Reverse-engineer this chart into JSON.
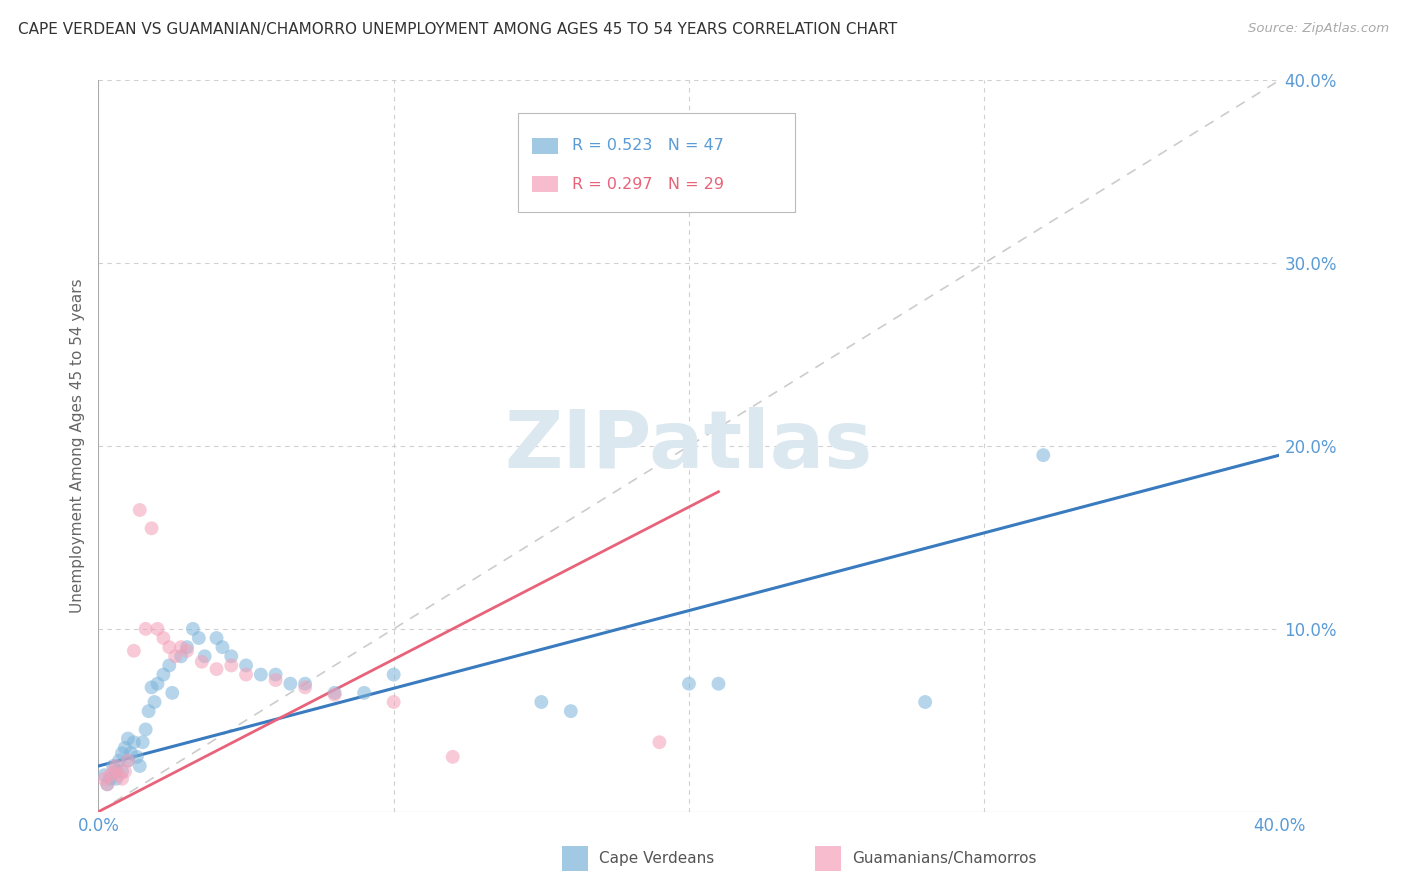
{
  "title": "CAPE VERDEAN VS GUAMANIAN/CHAMORRO UNEMPLOYMENT AMONG AGES 45 TO 54 YEARS CORRELATION CHART",
  "source": "Source: ZipAtlas.com",
  "ylabel": "Unemployment Among Ages 45 to 54 years",
  "xlim": [
    0.0,
    0.4
  ],
  "ylim": [
    0.0,
    0.4
  ],
  "xticks": [
    0.0,
    0.1,
    0.2,
    0.3,
    0.4
  ],
  "yticks": [
    0.1,
    0.2,
    0.3,
    0.4
  ],
  "xticklabels": [
    "0.0%",
    "",
    "",
    "",
    "40.0%"
  ],
  "yticklabels": [
    "10.0%",
    "20.0%",
    "30.0%",
    "40.0%"
  ],
  "blue_color": "#7ab3d9",
  "pink_color": "#f4a0b8",
  "blue_line_color": "#3a7bbf",
  "pink_line_color": "#e8637a",
  "ref_line_color": "#cccccc",
  "axis_label_color": "#5b9bd5",
  "grid_color": "#d0d0d0",
  "background_color": "#ffffff",
  "watermark": "ZIPatlas",
  "watermark_color": "#dce8f0",
  "legend_R_blue": "R = 0.523",
  "legend_N_blue": "N = 47",
  "legend_R_pink": "R = 0.297",
  "legend_N_pink": "N = 29",
  "legend_label_blue": "Cape Verdeans",
  "legend_label_pink": "Guamanians/Chamorros",
  "blue_line_x0": 0.0,
  "blue_line_y0": 0.025,
  "blue_line_x1": 0.4,
  "blue_line_y1": 0.195,
  "pink_line_x0": 0.0,
  "pink_line_y0": 0.0,
  "pink_line_x1": 0.21,
  "pink_line_y1": 0.175,
  "ref_line_x0": 0.0,
  "ref_line_y0": 0.0,
  "ref_line_x1": 0.4,
  "ref_line_y1": 0.4,
  "blue_points_x": [
    0.002,
    0.003,
    0.004,
    0.005,
    0.006,
    0.006,
    0.007,
    0.008,
    0.008,
    0.009,
    0.01,
    0.01,
    0.011,
    0.012,
    0.013,
    0.014,
    0.015,
    0.016,
    0.017,
    0.018,
    0.019,
    0.02,
    0.022,
    0.024,
    0.025,
    0.028,
    0.03,
    0.032,
    0.034,
    0.036,
    0.04,
    0.042,
    0.045,
    0.05,
    0.055,
    0.06,
    0.065,
    0.07,
    0.08,
    0.09,
    0.1,
    0.15,
    0.16,
    0.2,
    0.21,
    0.28,
    0.32
  ],
  "blue_points_y": [
    0.02,
    0.015,
    0.018,
    0.025,
    0.022,
    0.018,
    0.028,
    0.032,
    0.022,
    0.035,
    0.04,
    0.028,
    0.032,
    0.038,
    0.03,
    0.025,
    0.038,
    0.045,
    0.055,
    0.068,
    0.06,
    0.07,
    0.075,
    0.08,
    0.065,
    0.085,
    0.09,
    0.1,
    0.095,
    0.085,
    0.095,
    0.09,
    0.085,
    0.08,
    0.075,
    0.075,
    0.07,
    0.07,
    0.065,
    0.065,
    0.075,
    0.06,
    0.055,
    0.07,
    0.07,
    0.06,
    0.195
  ],
  "pink_points_x": [
    0.002,
    0.003,
    0.004,
    0.005,
    0.006,
    0.007,
    0.008,
    0.009,
    0.01,
    0.012,
    0.014,
    0.016,
    0.018,
    0.02,
    0.022,
    0.024,
    0.026,
    0.028,
    0.03,
    0.035,
    0.04,
    0.045,
    0.05,
    0.06,
    0.07,
    0.08,
    0.1,
    0.12,
    0.19
  ],
  "pink_points_y": [
    0.018,
    0.015,
    0.02,
    0.022,
    0.025,
    0.02,
    0.018,
    0.022,
    0.028,
    0.088,
    0.165,
    0.1,
    0.155,
    0.1,
    0.095,
    0.09,
    0.085,
    0.09,
    0.088,
    0.082,
    0.078,
    0.08,
    0.075,
    0.072,
    0.068,
    0.064,
    0.06,
    0.03,
    0.038
  ]
}
